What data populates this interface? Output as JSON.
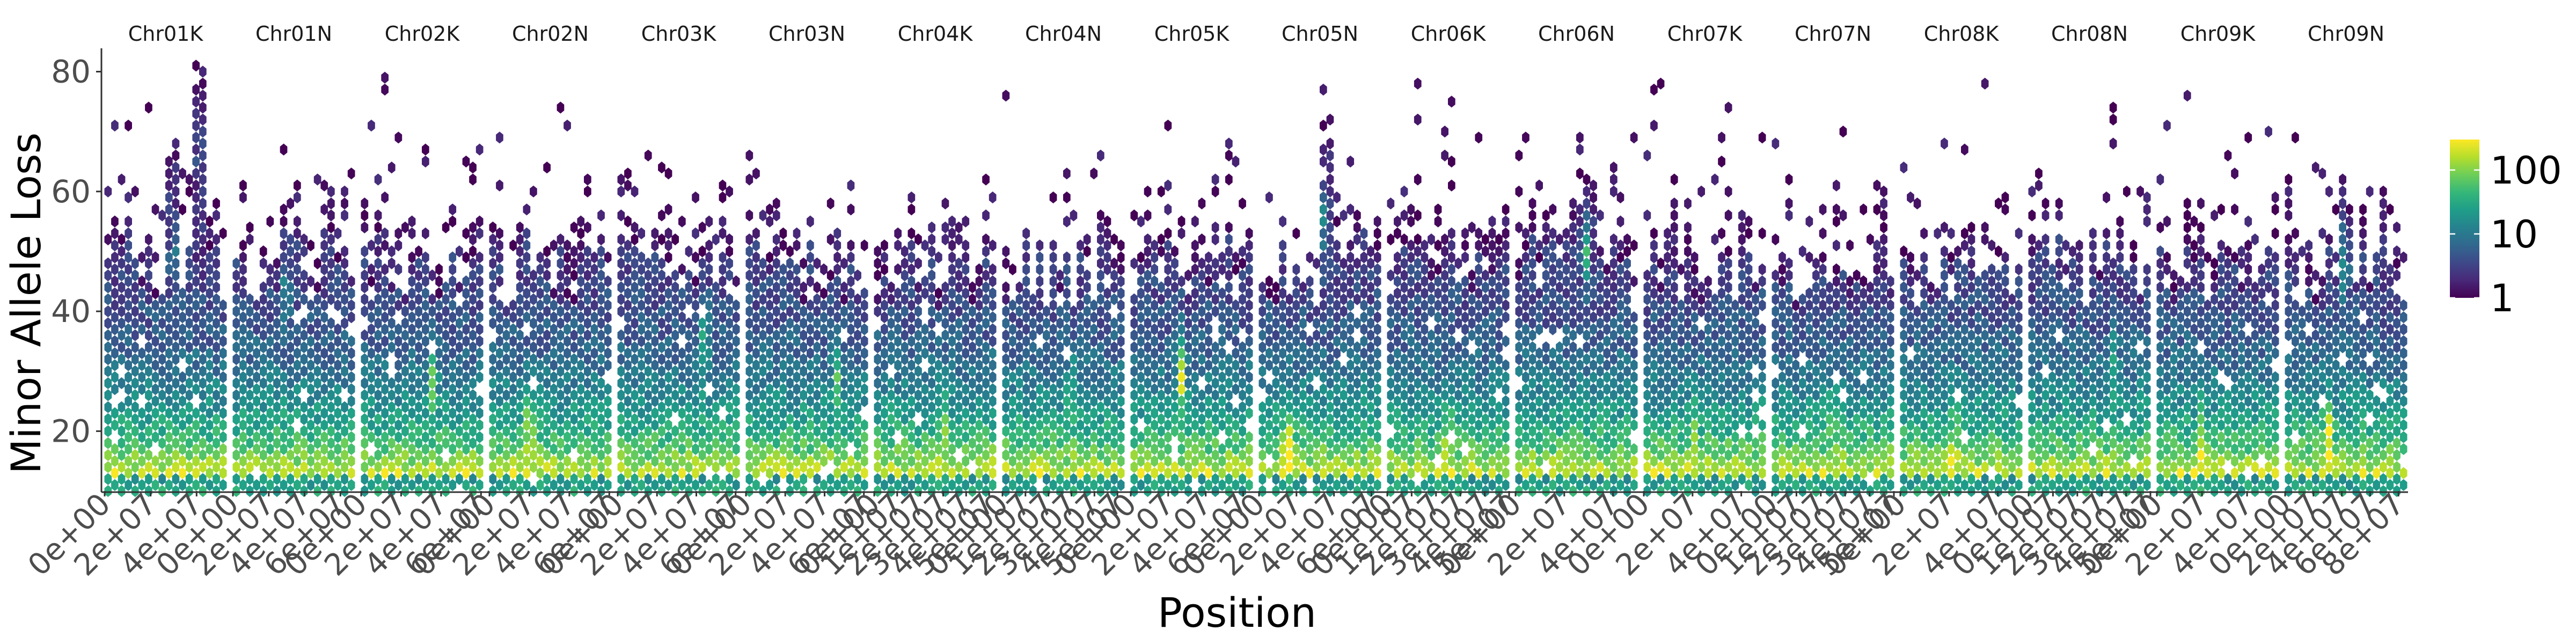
{
  "chart_data": {
    "type": "heatmap",
    "subtype": "faceted hexbin density",
    "title": "",
    "xlabel": "Position",
    "ylabel": "Minor Allele Loss",
    "ylim": [
      10,
      83
    ],
    "y_ticks": [
      20,
      40,
      60,
      80
    ],
    "facets": [
      {
        "name": "Chr01K",
        "xmax": 53000000.0,
        "x_ticks": [
          {
            "label": "0e+00",
            "value": 0
          },
          {
            "label": "2e+07",
            "value": 20000000.0
          },
          {
            "label": "4e+07",
            "value": 40000000.0
          }
        ],
        "hotspots": [
          {
            "x": 30000000.0,
            "y": 50,
            "w": 0.3
          },
          {
            "x": 41000000.0,
            "y": 68,
            "w": 0.15
          }
        ]
      },
      {
        "name": "Chr01N",
        "xmax": 68000000.0,
        "x_ticks": [
          {
            "label": "0e+00",
            "value": 0
          },
          {
            "label": "2e+07",
            "value": 20000000.0
          },
          {
            "label": "4e+07",
            "value": 40000000.0
          },
          {
            "label": "6e+07",
            "value": 60000000.0
          }
        ],
        "hotspots": [
          {
            "x": 30000000.0,
            "y": 44,
            "w": 0.3
          }
        ]
      },
      {
        "name": "Chr02K",
        "xmax": 61000000.0,
        "x_ticks": [
          {
            "label": "0e+00",
            "value": 0
          },
          {
            "label": "2e+07",
            "value": 20000000.0
          },
          {
            "label": "4e+07",
            "value": 40000000.0
          },
          {
            "label": "6e+07",
            "value": 60000000.0
          }
        ],
        "hotspots": [
          {
            "x": 36000000.0,
            "y": 30,
            "w": 0.35
          }
        ]
      },
      {
        "name": "Chr02N",
        "xmax": 61000000.0,
        "x_ticks": [
          {
            "label": "0e+00",
            "value": 0
          },
          {
            "label": "2e+07",
            "value": 20000000.0
          },
          {
            "label": "4e+07",
            "value": 40000000.0
          },
          {
            "label": "6e+07",
            "value": 60000000.0
          }
        ],
        "hotspots": [
          {
            "x": 20000000.0,
            "y": 22,
            "w": 0.25
          }
        ]
      },
      {
        "name": "Chr03K",
        "xmax": 62000000.0,
        "x_ticks": [
          {
            "label": "0e+00",
            "value": 0
          },
          {
            "label": "2e+07",
            "value": 20000000.0
          },
          {
            "label": "4e+07",
            "value": 40000000.0
          },
          {
            "label": "6e+07",
            "value": 60000000.0
          }
        ],
        "hotspots": [
          {
            "x": 44000000.0,
            "y": 36,
            "w": 0.4
          }
        ]
      },
      {
        "name": "Chr03N",
        "xmax": 62000000.0,
        "x_ticks": [
          {
            "label": "0e+00",
            "value": 0
          },
          {
            "label": "2e+07",
            "value": 20000000.0
          },
          {
            "label": "4e+07",
            "value": 40000000.0
          },
          {
            "label": "6e+07",
            "value": 60000000.0
          }
        ],
        "hotspots": [
          {
            "x": 46000000.0,
            "y": 30,
            "w": 0.35
          }
        ]
      },
      {
        "name": "Chr04K",
        "xmax": 53000000.0,
        "x_ticks": [
          {
            "label": "0e+00",
            "value": 0
          },
          {
            "label": "1e+07",
            "value": 10000000.0
          },
          {
            "label": "2e+07",
            "value": 20000000.0
          },
          {
            "label": "3e+07",
            "value": 30000000.0
          },
          {
            "label": "4e+07",
            "value": 40000000.0
          },
          {
            "label": "5e+07",
            "value": 50000000.0
          }
        ],
        "hotspots": [
          {
            "x": 30000000.0,
            "y": 22,
            "w": 0.25
          }
        ]
      },
      {
        "name": "Chr04N",
        "xmax": 53000000.0,
        "x_ticks": [
          {
            "label": "0e+00",
            "value": 0
          },
          {
            "label": "1e+07",
            "value": 10000000.0
          },
          {
            "label": "2e+07",
            "value": 20000000.0
          },
          {
            "label": "3e+07",
            "value": 30000000.0
          },
          {
            "label": "4e+07",
            "value": 40000000.0
          },
          {
            "label": "5e+07",
            "value": 50000000.0
          }
        ],
        "hotspots": [
          {
            "x": 30000000.0,
            "y": 28,
            "w": 0.2
          }
        ]
      },
      {
        "name": "Chr05K",
        "xmax": 65000000.0,
        "x_ticks": [
          {
            "label": "0e+00",
            "value": 0
          },
          {
            "label": "2e+07",
            "value": 20000000.0
          },
          {
            "label": "4e+07",
            "value": 40000000.0
          },
          {
            "label": "6e+07",
            "value": 60000000.0
          }
        ],
        "hotspots": [
          {
            "x": 27000000.0,
            "y": 30,
            "w": 0.55
          }
        ]
      },
      {
        "name": "Chr05N",
        "xmax": 65000000.0,
        "x_ticks": [
          {
            "label": "0e+00",
            "value": 0
          },
          {
            "label": "2e+07",
            "value": 20000000.0
          },
          {
            "label": "4e+07",
            "value": 40000000.0
          },
          {
            "label": "6e+07",
            "value": 60000000.0
          }
        ],
        "hotspots": [
          {
            "x": 35000000.0,
            "y": 55,
            "w": 0.3
          },
          {
            "x": 15000000.0,
            "y": 18,
            "w": 0.35
          }
        ]
      },
      {
        "name": "Chr06K",
        "xmax": 50000000.0,
        "x_ticks": [
          {
            "label": "0e+00",
            "value": 0
          },
          {
            "label": "1e+07",
            "value": 10000000.0
          },
          {
            "label": "2e+07",
            "value": 20000000.0
          },
          {
            "label": "3e+07",
            "value": 30000000.0
          },
          {
            "label": "4e+07",
            "value": 40000000.0
          },
          {
            "label": "5e+07",
            "value": 50000000.0
          }
        ],
        "hotspots": [
          {
            "x": 25000000.0,
            "y": 20,
            "w": 0.2
          }
        ]
      },
      {
        "name": "Chr06N",
        "xmax": 50000000.0,
        "x_ticks": [
          {
            "label": "0e+00",
            "value": 0
          },
          {
            "label": "2e+07",
            "value": 20000000.0
          },
          {
            "label": "4e+07",
            "value": 40000000.0
          }
        ],
        "hotspots": [
          {
            "x": 29000000.0,
            "y": 50,
            "w": 0.45
          }
        ]
      },
      {
        "name": "Chr07K",
        "xmax": 50000000.0,
        "x_ticks": [
          {
            "label": "0e+00",
            "value": 0
          },
          {
            "label": "2e+07",
            "value": 20000000.0
          },
          {
            "label": "4e+07",
            "value": 40000000.0
          }
        ],
        "hotspots": [
          {
            "x": 20000000.0,
            "y": 20,
            "w": 0.2
          }
        ]
      },
      {
        "name": "Chr07N",
        "xmax": 50000000.0,
        "x_ticks": [
          {
            "label": "0e+00",
            "value": 0
          },
          {
            "label": "1e+07",
            "value": 10000000.0
          },
          {
            "label": "2e+07",
            "value": 20000000.0
          },
          {
            "label": "3e+07",
            "value": 30000000.0
          },
          {
            "label": "4e+07",
            "value": 40000000.0
          },
          {
            "label": "5e+07",
            "value": 50000000.0
          }
        ],
        "hotspots": [
          {
            "x": 25000000.0,
            "y": 22,
            "w": 0.2
          }
        ]
      },
      {
        "name": "Chr08K",
        "xmax": 50000000.0,
        "x_ticks": [
          {
            "label": "0e+00",
            "value": 0
          },
          {
            "label": "2e+07",
            "value": 20000000.0
          },
          {
            "label": "4e+07",
            "value": 40000000.0
          }
        ],
        "hotspots": [
          {
            "x": 22000000.0,
            "y": 18,
            "w": 0.2
          }
        ]
      },
      {
        "name": "Chr08N",
        "xmax": 50000000.0,
        "x_ticks": [
          {
            "label": "0e+00",
            "value": 0
          },
          {
            "label": "1e+07",
            "value": 10000000.0
          },
          {
            "label": "2e+07",
            "value": 20000000.0
          },
          {
            "label": "3e+07",
            "value": 30000000.0
          },
          {
            "label": "4e+07",
            "value": 40000000.0
          },
          {
            "label": "5e+07",
            "value": 50000000.0
          }
        ],
        "hotspots": [
          {
            "x": 35000000.0,
            "y": 32,
            "w": 0.25
          }
        ]
      },
      {
        "name": "Chr09K",
        "xmax": 54000000.0,
        "x_ticks": [
          {
            "label": "0e+00",
            "value": 0
          },
          {
            "label": "2e+07",
            "value": 20000000.0
          },
          {
            "label": "4e+07",
            "value": 40000000.0
          }
        ],
        "hotspots": [
          {
            "x": 20000000.0,
            "y": 18,
            "w": 0.25
          }
        ]
      },
      {
        "name": "Chr09N",
        "xmax": 86000000.0,
        "x_ticks": [
          {
            "label": "0e+00",
            "value": 0
          },
          {
            "label": "2e+07",
            "value": 20000000.0
          },
          {
            "label": "4e+07",
            "value": 40000000.0
          },
          {
            "label": "6e+07",
            "value": 60000000.0
          },
          {
            "label": "8e+07",
            "value": 80000000.0
          }
        ],
        "hotspots": [
          {
            "x": 42000000.0,
            "y": 48,
            "w": 0.4
          },
          {
            "x": 30000000.0,
            "y": 20,
            "w": 0.35
          }
        ]
      }
    ],
    "legend": {
      "title": "",
      "scale": "log",
      "placement": "right",
      "range": [
        1,
        300
      ],
      "ticks": [
        {
          "label": "1",
          "value": 1
        },
        {
          "label": "10",
          "value": 10
        },
        {
          "label": "100",
          "value": 100
        }
      ],
      "colormap": [
        "#440154",
        "#482878",
        "#3e4989",
        "#31688e",
        "#26828e",
        "#1f9e89",
        "#35b779",
        "#6ece58",
        "#b5de2b",
        "#fde725"
      ]
    },
    "grid": false
  }
}
